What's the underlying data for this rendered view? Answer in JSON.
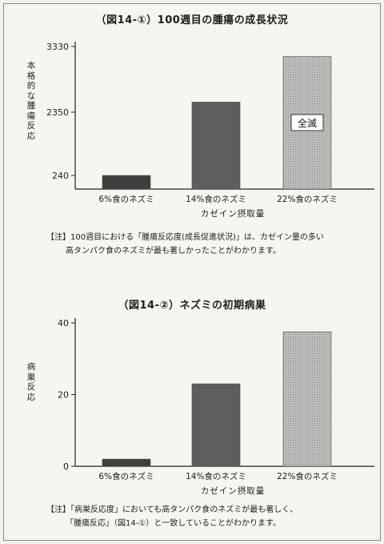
{
  "chart_data": [
    {
      "type": "bar",
      "title": "（図14-①）100週目の腫瘍の成長状況",
      "ylabel": "本格的な腫瘍反応",
      "xlabel": "カゼイン摂取量",
      "categories": [
        "6%食のネズミ",
        "14%食のネズミ",
        "22%食のネズミ"
      ],
      "values": [
        240,
        2500,
        3180
      ],
      "yticks": [
        "240",
        "2350",
        "3330"
      ],
      "annotation": "全滅",
      "note": [
        "【注】100週目における「腫瘍反応度(成長促進状況)」は、カゼイン量の多い",
        "高タンパク食のネズミが最も著しかったことがわかります。"
      ]
    },
    {
      "type": "bar",
      "title": "（図14-②）ネズミの初期病巣",
      "ylabel": "病巣反応",
      "xlabel": "カゼイン摂取量",
      "categories": [
        "6%食のネズミ",
        "14%食のネズミ",
        "22%食のネズミ"
      ],
      "values": [
        2,
        23,
        37.5
      ],
      "ylim": [
        0,
        40
      ],
      "yticks": [
        "0",
        "20",
        "40"
      ],
      "note": [
        "【注】「病巣反応度」においても高タンパク食のネズミが最も著しく、",
        "「腫瘍反応」（図14-①）と一致していることがわかります。"
      ]
    }
  ],
  "colors": {
    "bar_dark": "#3f3f3f",
    "bar_mid": "#5e5e5e",
    "bar_light": "#bcbcbc",
    "axis": "#222222"
  }
}
